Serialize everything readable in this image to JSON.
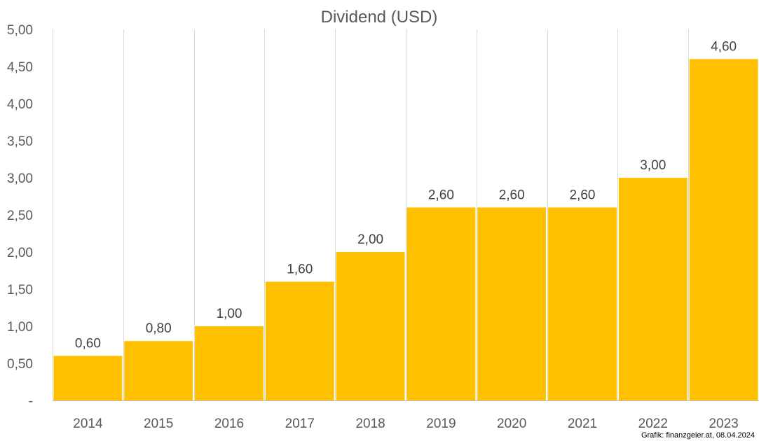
{
  "chart_data": {
    "type": "bar",
    "title": "Dividend (USD)",
    "categories": [
      "2014",
      "2015",
      "2016",
      "2017",
      "2018",
      "2019",
      "2020",
      "2021",
      "2022",
      "2023"
    ],
    "values": [
      0.6,
      0.8,
      1.0,
      1.6,
      2.0,
      2.6,
      2.6,
      2.6,
      3.0,
      4.6
    ],
    "data_labels": [
      "0,60",
      "0,80",
      "1,00",
      "1,60",
      "2,00",
      "2,60",
      "2,60",
      "2,60",
      "3,00",
      "4,60"
    ],
    "y_ticks": [
      0,
      0.5,
      1.0,
      1.5,
      2.0,
      2.5,
      3.0,
      3.5,
      4.0,
      4.5,
      5.0
    ],
    "y_tick_labels": [
      "-",
      "0,50",
      "1,00",
      "1,50",
      "2,00",
      "2,50",
      "3,00",
      "3,50",
      "4,00",
      "4,50",
      "5,00"
    ],
    "ylim": [
      0,
      5
    ],
    "xlabel": "",
    "ylabel": "",
    "grid": "vertical",
    "legend": "none",
    "bar_color": "#FFC000",
    "credit": "Grafik: finanzgeier.at, 08.04.2024"
  }
}
